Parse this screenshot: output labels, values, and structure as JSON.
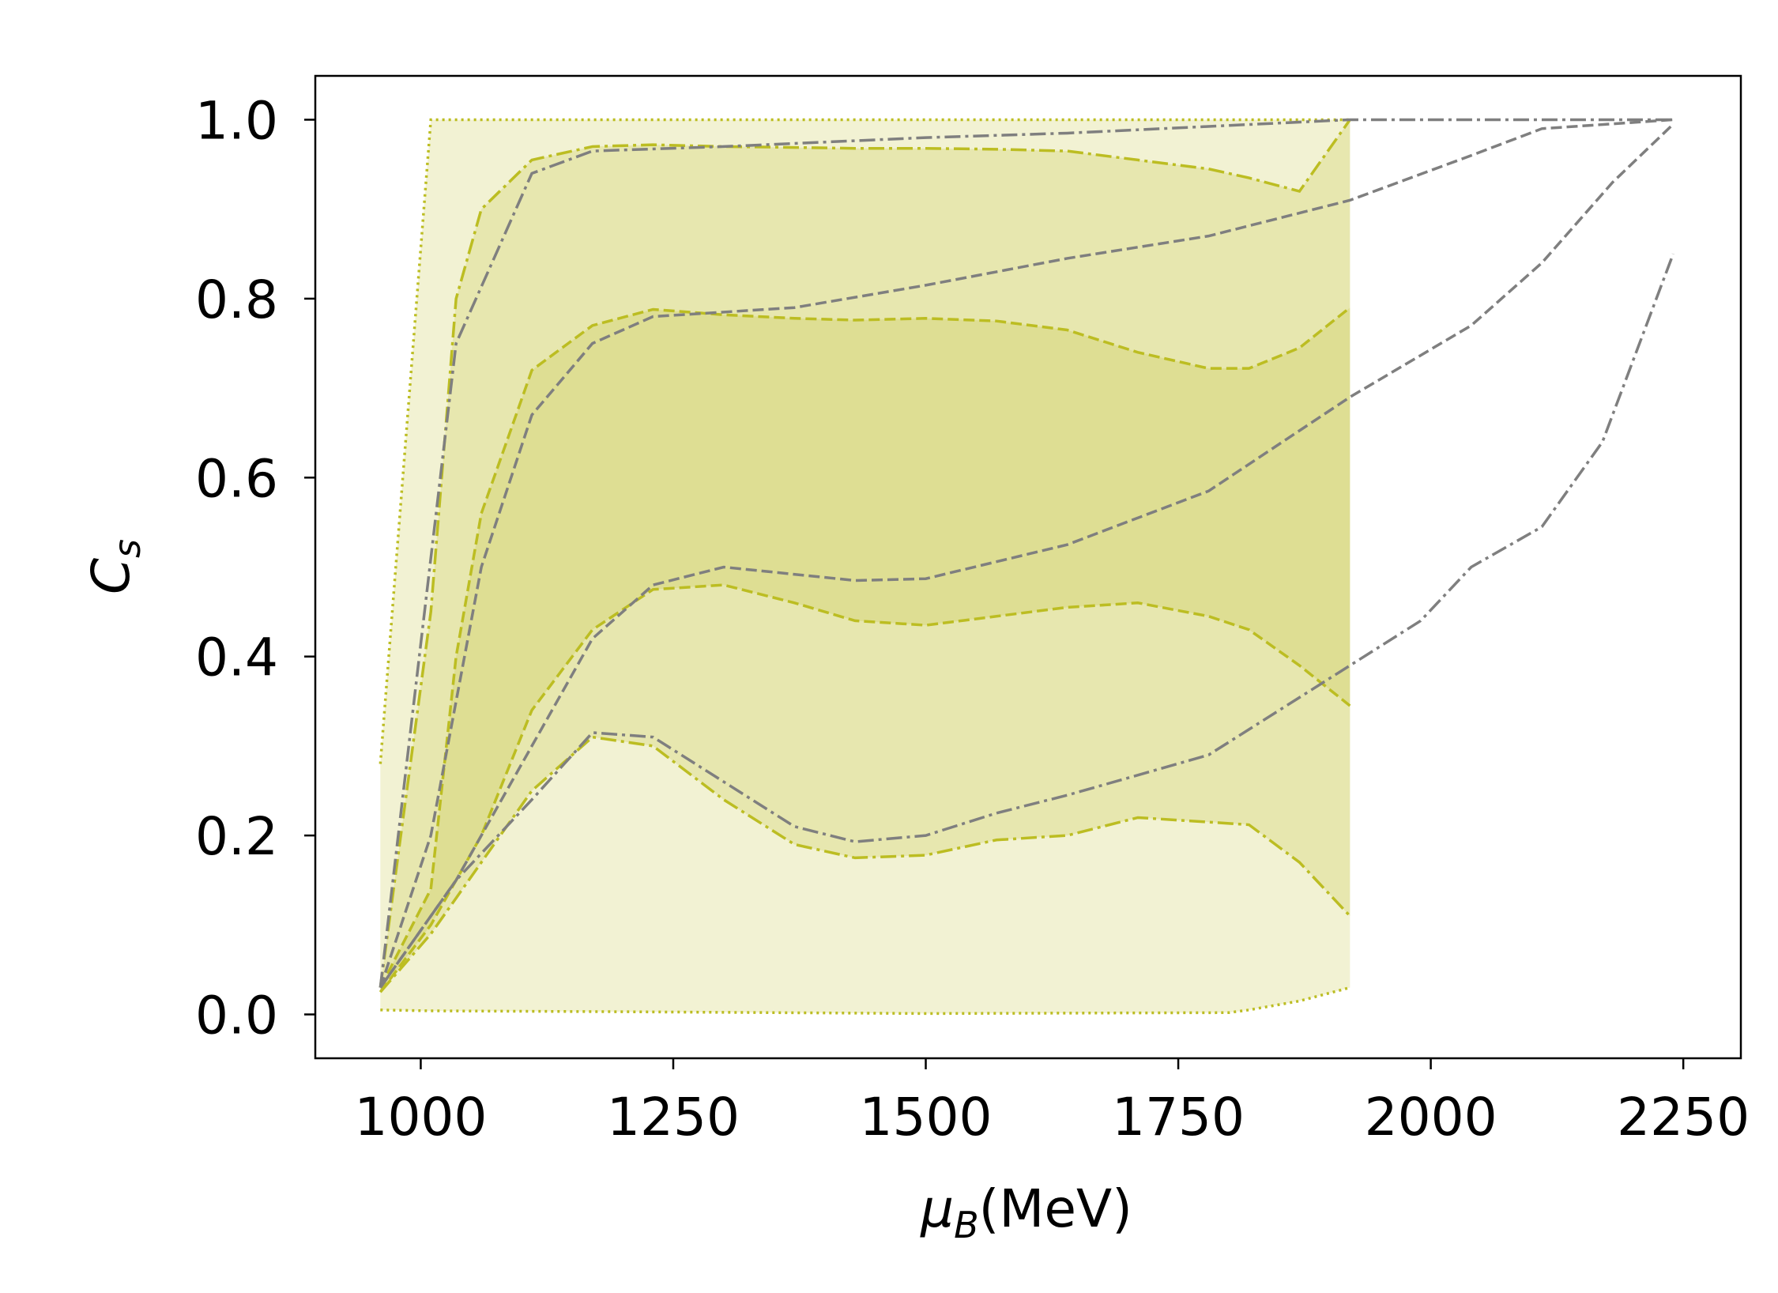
{
  "chart_data": {
    "type": "band-line",
    "xlabel": {
      "symbol": "μ",
      "sub": "B",
      "unit": "(MeV)"
    },
    "ylabel": {
      "symbol": "C",
      "sub": "s"
    },
    "xlim": [
      895.6,
      2307
    ],
    "ylim": [
      -0.049,
      1.049
    ],
    "xticks": [
      1000,
      1250,
      1500,
      1750,
      2000,
      2250
    ],
    "yticks": [
      {
        "value": 0,
        "label": "0.0"
      },
      {
        "value": 0.2,
        "label": "0.2"
      },
      {
        "value": 0.4,
        "label": "0.4"
      },
      {
        "value": 0.6,
        "label": "0.6"
      },
      {
        "value": 0.8,
        "label": "0.8"
      },
      {
        "value": 1,
        "label": "1.0"
      }
    ],
    "fill_alpha": 0.2,
    "bands": [
      {
        "color": "#bcbd22",
        "dash": "dotted",
        "x": [
          960,
          1010,
          1200,
          1500,
          1800,
          1820,
          1870,
          1920
        ],
        "upper": [
          0.28,
          1,
          1,
          1,
          1,
          1,
          1,
          1
        ],
        "lower": [
          0.005,
          0.004,
          0.003,
          0.001,
          0.002,
          0.005,
          0.015,
          0.03
        ]
      },
      {
        "color": "#bcbd22",
        "dash": "dashdot",
        "x": [
          960,
          1010,
          1035,
          1060,
          1110,
          1170,
          1230,
          1300,
          1370,
          1430,
          1500,
          1570,
          1640,
          1710,
          1780,
          1820,
          1870,
          1920
        ],
        "upper": [
          0.03,
          0.45,
          0.8,
          0.9,
          0.955,
          0.97,
          0.972,
          0.97,
          0.969,
          0.968,
          0.968,
          0.967,
          0.965,
          0.955,
          0.945,
          0.935,
          0.92,
          1.0
        ],
        "lower": [
          0.025,
          0.09,
          0.13,
          0.17,
          0.25,
          0.31,
          0.3,
          0.24,
          0.19,
          0.175,
          0.178,
          0.195,
          0.2,
          0.22,
          0.215,
          0.212,
          0.17,
          0.11
        ]
      },
      {
        "color": "#bcbd22",
        "dash": "dashed",
        "x": [
          960,
          1010,
          1035,
          1060,
          1110,
          1170,
          1230,
          1300,
          1370,
          1430,
          1500,
          1570,
          1640,
          1710,
          1780,
          1820,
          1870,
          1920
        ],
        "upper": [
          0.03,
          0.14,
          0.4,
          0.56,
          0.72,
          0.77,
          0.788,
          0.782,
          0.778,
          0.776,
          0.778,
          0.775,
          0.765,
          0.74,
          0.722,
          0.722,
          0.745,
          0.79
        ],
        "lower": [
          0.025,
          0.1,
          0.15,
          0.2,
          0.34,
          0.43,
          0.475,
          0.48,
          0.46,
          0.44,
          0.435,
          0.445,
          0.455,
          0.46,
          0.445,
          0.43,
          0.39,
          0.345
        ]
      }
    ],
    "series": [
      {
        "color": "#7f7f7f",
        "dash": "dashdot",
        "x": [
          960,
          1035,
          1110,
          1170,
          1300,
          1500,
          1640,
          1920,
          2240
        ],
        "values": [
          0.03,
          0.75,
          0.94,
          0.965,
          0.97,
          0.98,
          0.985,
          1.0,
          1.0
        ]
      },
      {
        "color": "#7f7f7f",
        "dash": "dashed",
        "x": [
          960,
          1010,
          1060,
          1110,
          1170,
          1230,
          1370,
          1500,
          1640,
          1780,
          1920,
          2040,
          2110,
          2240
        ],
        "values": [
          0.03,
          0.2,
          0.5,
          0.67,
          0.75,
          0.78,
          0.79,
          0.815,
          0.845,
          0.87,
          0.91,
          0.96,
          0.99,
          1.0
        ]
      },
      {
        "color": "#7f7f7f",
        "dash": "dashed",
        "x": [
          960,
          1035,
          1110,
          1170,
          1230,
          1300,
          1430,
          1500,
          1640,
          1780,
          1920,
          2040,
          2110,
          2180,
          2240
        ],
        "values": [
          0.03,
          0.15,
          0.3,
          0.42,
          0.48,
          0.5,
          0.485,
          0.487,
          0.525,
          0.585,
          0.69,
          0.77,
          0.84,
          0.93,
          0.995
        ]
      },
      {
        "color": "#7f7f7f",
        "dash": "dashdot",
        "x": [
          960,
          1035,
          1110,
          1170,
          1230,
          1300,
          1370,
          1430,
          1500,
          1570,
          1640,
          1780,
          1920,
          1990,
          2040,
          2110,
          2170,
          2240
        ],
        "values": [
          0.03,
          0.15,
          0.24,
          0.315,
          0.31,
          0.26,
          0.21,
          0.193,
          0.2,
          0.225,
          0.245,
          0.29,
          0.39,
          0.44,
          0.5,
          0.545,
          0.64,
          0.85
        ]
      }
    ]
  }
}
